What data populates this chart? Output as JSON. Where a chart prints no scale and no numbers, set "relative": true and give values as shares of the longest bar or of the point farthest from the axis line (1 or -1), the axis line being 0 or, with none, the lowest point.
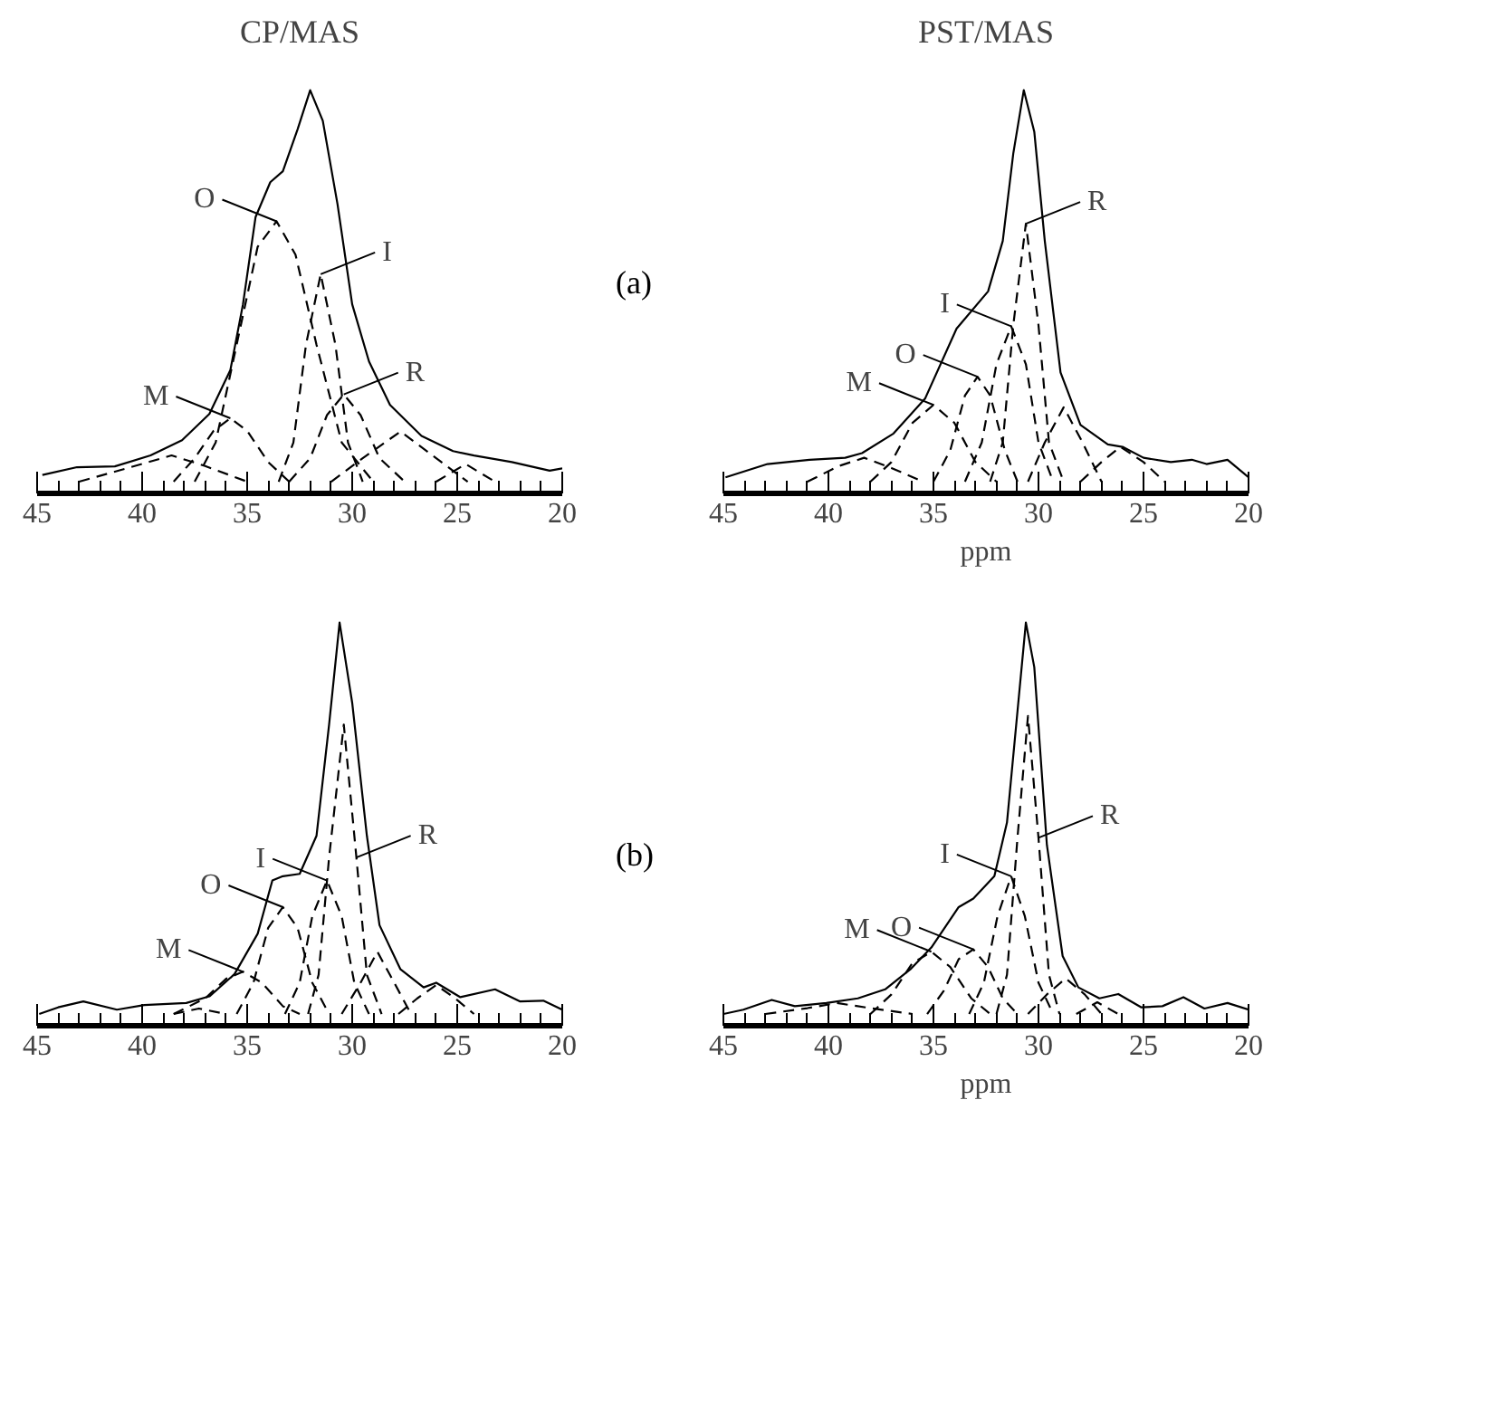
{
  "chart_data": [
    {
      "type": "line",
      "title": "CP/MAS",
      "relative": true,
      "xlim": [
        45,
        20
      ],
      "xticks": [
        45,
        40,
        35,
        30,
        25,
        20
      ],
      "annotations": [
        "(a)",
        {
          "text": "O",
          "x": 33.6,
          "y": 0.665
        },
        {
          "text": "I",
          "x": 31.5,
          "y": 0.53
        },
        {
          "text": "R",
          "x": 30.4,
          "y": 0.223
        },
        {
          "text": "M",
          "x": 35.8,
          "y": 0.162
        }
      ],
      "series": [
        {
          "color": "#000000",
          "line_style": "solid",
          "x": [
            44.75,
            43.1,
            41.3,
            39.6,
            38.1,
            36.8,
            35.8,
            35.2,
            34.6,
            33.9,
            33.3,
            32.6,
            32.0,
            31.4,
            30.7,
            30.0,
            29.2,
            28.2,
            26.7,
            25.2,
            24.2,
            22.4,
            20.6,
            20.0
          ],
          "values": [
            0.017,
            0.037,
            0.039,
            0.067,
            0.106,
            0.173,
            0.285,
            0.453,
            0.676,
            0.765,
            0.793,
            0.9,
            1.0,
            0.922,
            0.709,
            0.453,
            0.307,
            0.196,
            0.117,
            0.078,
            0.067,
            0.05,
            0.028,
            0.034
          ]
        },
        {
          "color": "#000000",
          "line_style": "dashed",
          "x": [
            37.5,
            36.5,
            35.5,
            34.5,
            33.6,
            32.7,
            31.7,
            30.5,
            29.0
          ],
          "values": [
            0,
            0.1,
            0.35,
            0.6,
            0.665,
            0.58,
            0.35,
            0.1,
            0
          ]
        },
        {
          "color": "#000000",
          "line_style": "dashed",
          "x": [
            33.5,
            32.8,
            32.2,
            31.5,
            30.8,
            30.2,
            29.5
          ],
          "values": [
            0,
            0.1,
            0.35,
            0.53,
            0.35,
            0.1,
            0
          ]
        },
        {
          "color": "#000000",
          "line_style": "dashed",
          "x": [
            38.5,
            37.5,
            36.6,
            35.8,
            35.0,
            34.0,
            33.0
          ],
          "values": [
            0,
            0.06,
            0.13,
            0.162,
            0.13,
            0.05,
            0
          ]
        },
        {
          "color": "#000000",
          "line_style": "dashed",
          "x": [
            33,
            32,
            31.2,
            30.4,
            29.6,
            28.7,
            27.5
          ],
          "values": [
            0,
            0.06,
            0.17,
            0.223,
            0.17,
            0.06,
            0
          ]
        },
        {
          "color": "#000000",
          "line_style": "dashed",
          "x": [
            43,
            41,
            38.6,
            37,
            35
          ],
          "values": [
            0,
            0.03,
            0.067,
            0.04,
            0
          ]
        },
        {
          "color": "#000000",
          "line_style": "dashed",
          "x": [
            31,
            29.5,
            27.7,
            26,
            24.5
          ],
          "values": [
            0,
            0.06,
            0.128,
            0.06,
            0
          ]
        },
        {
          "color": "#000000",
          "line_style": "dashed",
          "x": [
            26,
            24.6,
            23.2
          ],
          "values": [
            0,
            0.045,
            0
          ]
        }
      ]
    },
    {
      "type": "line",
      "title": "PST/MAS",
      "xlabel": "ppm",
      "relative": true,
      "xlim": [
        45,
        20
      ],
      "xticks": [
        45,
        40,
        35,
        30,
        25,
        20
      ],
      "annotations": [
        {
          "text": "R",
          "x": 30.6,
          "y": 0.659
        },
        {
          "text": "I",
          "x": 31.3,
          "y": 0.397
        },
        {
          "text": "O",
          "x": 32.9,
          "y": 0.268
        },
        {
          "text": "M",
          "x": 35.0,
          "y": 0.196
        }
      ],
      "series": [
        {
          "color": "#000000",
          "line_style": "solid",
          "x": [
            44.9,
            42.9,
            40.9,
            39.2,
            38.4,
            36.9,
            35.4,
            33.9,
            32.4,
            31.7,
            31.2,
            30.7,
            30.2,
            29.7,
            28.95,
            28.0,
            26.7,
            26.0,
            25.0,
            23.7,
            22.7,
            22.0,
            21.0,
            20.0
          ],
          "values": [
            0.011,
            0.045,
            0.056,
            0.061,
            0.073,
            0.123,
            0.212,
            0.391,
            0.486,
            0.615,
            0.838,
            1.0,
            0.894,
            0.615,
            0.279,
            0.145,
            0.095,
            0.089,
            0.061,
            0.05,
            0.056,
            0.045,
            0.056,
            0.011
          ]
        },
        {
          "color": "#000000",
          "line_style": "dashed",
          "x": [
            32.3,
            31.7,
            31.2,
            30.6,
            30.0,
            29.5,
            28.8
          ],
          "values": [
            0,
            0.1,
            0.4,
            0.659,
            0.4,
            0.1,
            0
          ]
        },
        {
          "color": "#000000",
          "line_style": "dashed",
          "x": [
            33.5,
            32.7,
            32.0,
            31.3,
            30.6,
            30.0,
            29.3
          ],
          "values": [
            0,
            0.1,
            0.3,
            0.397,
            0.3,
            0.1,
            0
          ]
        },
        {
          "color": "#000000",
          "line_style": "dashed",
          "x": [
            35,
            34.2,
            33.5,
            32.9,
            32.3,
            31.6,
            31
          ],
          "values": [
            0,
            0.08,
            0.22,
            0.268,
            0.22,
            0.08,
            0
          ]
        },
        {
          "color": "#000000",
          "line_style": "dashed",
          "x": [
            38,
            37,
            36,
            35,
            34,
            33,
            32
          ],
          "values": [
            0,
            0.05,
            0.15,
            0.196,
            0.15,
            0.05,
            0
          ]
        },
        {
          "color": "#000000",
          "line_style": "dashed",
          "x": [
            30.5,
            29.7,
            28.8,
            27.9,
            27.0
          ],
          "values": [
            0,
            0.1,
            0.19,
            0.1,
            0
          ]
        },
        {
          "color": "#000000",
          "line_style": "dashed",
          "x": [
            41,
            39.5,
            38.3,
            37,
            35.5
          ],
          "values": [
            0,
            0.04,
            0.061,
            0.035,
            0
          ]
        },
        {
          "color": "#000000",
          "line_style": "dashed",
          "x": [
            28,
            27,
            26.1,
            25,
            24
          ],
          "values": [
            0,
            0.05,
            0.089,
            0.05,
            0
          ]
        }
      ]
    },
    {
      "type": "line",
      "relative": true,
      "xlim": [
        45,
        20
      ],
      "xticks": [
        45,
        40,
        35,
        30,
        25,
        20
      ],
      "annotations": [
        "(b)",
        {
          "text": "I",
          "x": 31.2,
          "y": 0.341
        },
        {
          "text": "R",
          "x": 29.8,
          "y": 0.4
        },
        {
          "text": "O",
          "x": 33.3,
          "y": 0.273
        },
        {
          "text": "M",
          "x": 35.2,
          "y": 0.108
        }
      ],
      "series": [
        {
          "color": "#000000",
          "line_style": "solid",
          "x": [
            44.9,
            44.0,
            42.8,
            41.2,
            39.9,
            37.9,
            36.8,
            35.6,
            34.5,
            33.8,
            33.3,
            32.5,
            31.7,
            31.1,
            30.6,
            30.0,
            29.3,
            28.7,
            27.7,
            26.6,
            26.0,
            24.85,
            23.2,
            22.0,
            20.9,
            20.0
          ],
          "values": [
            0,
            0.017,
            0.032,
            0.011,
            0.023,
            0.028,
            0.045,
            0.102,
            0.205,
            0.341,
            0.352,
            0.358,
            0.455,
            0.739,
            1.0,
            0.795,
            0.455,
            0.227,
            0.114,
            0.068,
            0.08,
            0.043,
            0.063,
            0.032,
            0.034,
            0.011
          ]
        },
        {
          "color": "#000000",
          "line_style": "dashed",
          "x": [
            32.1,
            31.6,
            31.1,
            30.4,
            29.8,
            29.3,
            28.6
          ],
          "values": [
            0,
            0.1,
            0.4,
            0.739,
            0.4,
            0.1,
            0
          ]
        },
        {
          "color": "#000000",
          "line_style": "dashed",
          "x": [
            33.2,
            32.5,
            31.9,
            31.2,
            30.5,
            29.9,
            29.2
          ],
          "values": [
            0,
            0.08,
            0.25,
            0.341,
            0.25,
            0.08,
            0
          ]
        },
        {
          "color": "#000000",
          "line_style": "dashed",
          "x": [
            35.5,
            34.7,
            34.0,
            33.3,
            32.6,
            31.9,
            31.1
          ],
          "values": [
            0,
            0.08,
            0.22,
            0.273,
            0.22,
            0.08,
            0
          ]
        },
        {
          "color": "#000000",
          "line_style": "dashed",
          "x": [
            38.5,
            37,
            36,
            35.2,
            34.3,
            33.3,
            32.5
          ],
          "values": [
            0,
            0.04,
            0.09,
            0.108,
            0.08,
            0.02,
            0
          ]
        },
        {
          "color": "#000000",
          "line_style": "dashed",
          "x": [
            30.5,
            29.6,
            28.8,
            28.0,
            27.2
          ],
          "values": [
            0,
            0.08,
            0.159,
            0.08,
            0
          ]
        },
        {
          "color": "#000000",
          "line_style": "dashed",
          "x": [
            27.8,
            26.9,
            26.0,
            25.1,
            24.2
          ],
          "values": [
            0,
            0.04,
            0.074,
            0.04,
            0
          ]
        },
        {
          "color": "#000000",
          "line_style": "dashed",
          "x": [
            38.5,
            37.3,
            36.0
          ],
          "values": [
            0,
            0.014,
            0
          ]
        }
      ]
    },
    {
      "type": "line",
      "xlabel": "ppm",
      "relative": true,
      "xlim": [
        45,
        20
      ],
      "xticks": [
        45,
        40,
        35,
        30,
        25,
        20
      ],
      "annotations": [
        {
          "text": "R",
          "x": 30.0,
          "y": 0.45
        },
        {
          "text": "I",
          "x": 31.3,
          "y": 0.352
        },
        {
          "text": "O",
          "x": 33.1,
          "y": 0.165
        },
        {
          "text": "M",
          "x": 35.1,
          "y": 0.159
        }
      ],
      "series": [
        {
          "color": "#000000",
          "line_style": "solid",
          "x": [
            45,
            44.05,
            42.7,
            41.6,
            40.1,
            38.6,
            37.3,
            36.1,
            35.1,
            33.8,
            33.1,
            32.1,
            31.5,
            31.0,
            30.6,
            30.2,
            29.6,
            28.85,
            28.1,
            27.1,
            26.2,
            25.1,
            24.1,
            23.1,
            22.1,
            21.0,
            20.0
          ],
          "values": [
            0,
            0.011,
            0.036,
            0.02,
            0.028,
            0.04,
            0.063,
            0.114,
            0.17,
            0.273,
            0.295,
            0.352,
            0.489,
            0.773,
            1.0,
            0.886,
            0.432,
            0.148,
            0.068,
            0.04,
            0.051,
            0.017,
            0.02,
            0.043,
            0.014,
            0.028,
            0.011
          ]
        },
        {
          "color": "#000000",
          "line_style": "dashed",
          "x": [
            32.0,
            31.5,
            31.0,
            30.5,
            30.0,
            29.5,
            29.0
          ],
          "values": [
            0,
            0.1,
            0.45,
            0.761,
            0.45,
            0.1,
            0
          ]
        },
        {
          "color": "#000000",
          "line_style": "dashed",
          "x": [
            33.3,
            32.6,
            31.95,
            31.3,
            30.65,
            30.0,
            29.3
          ],
          "values": [
            0,
            0.08,
            0.25,
            0.352,
            0.25,
            0.08,
            0
          ]
        },
        {
          "color": "#000000",
          "line_style": "dashed",
          "x": [
            35.3,
            34.5,
            33.8,
            33.1,
            32.4,
            31.7,
            31.0
          ],
          "values": [
            0,
            0.06,
            0.14,
            0.165,
            0.12,
            0.04,
            0
          ]
        },
        {
          "color": "#000000",
          "line_style": "dashed",
          "x": [
            38,
            37,
            36,
            35.1,
            34.2,
            33.2,
            32.3
          ],
          "values": [
            0,
            0.05,
            0.13,
            0.159,
            0.12,
            0.04,
            0
          ]
        },
        {
          "color": "#000000",
          "line_style": "dashed",
          "x": [
            30.5,
            29.6,
            28.7,
            27.8,
            27.0
          ],
          "values": [
            0,
            0.05,
            0.091,
            0.05,
            0
          ]
        },
        {
          "color": "#000000",
          "line_style": "dashed",
          "x": [
            43,
            41,
            39.6,
            38,
            36
          ],
          "values": [
            0,
            0.015,
            0.028,
            0.015,
            0
          ]
        },
        {
          "color": "#000000",
          "line_style": "dashed",
          "x": [
            28.2,
            27.2,
            26.2
          ],
          "values": [
            0,
            0.03,
            0
          ]
        }
      ]
    }
  ]
}
